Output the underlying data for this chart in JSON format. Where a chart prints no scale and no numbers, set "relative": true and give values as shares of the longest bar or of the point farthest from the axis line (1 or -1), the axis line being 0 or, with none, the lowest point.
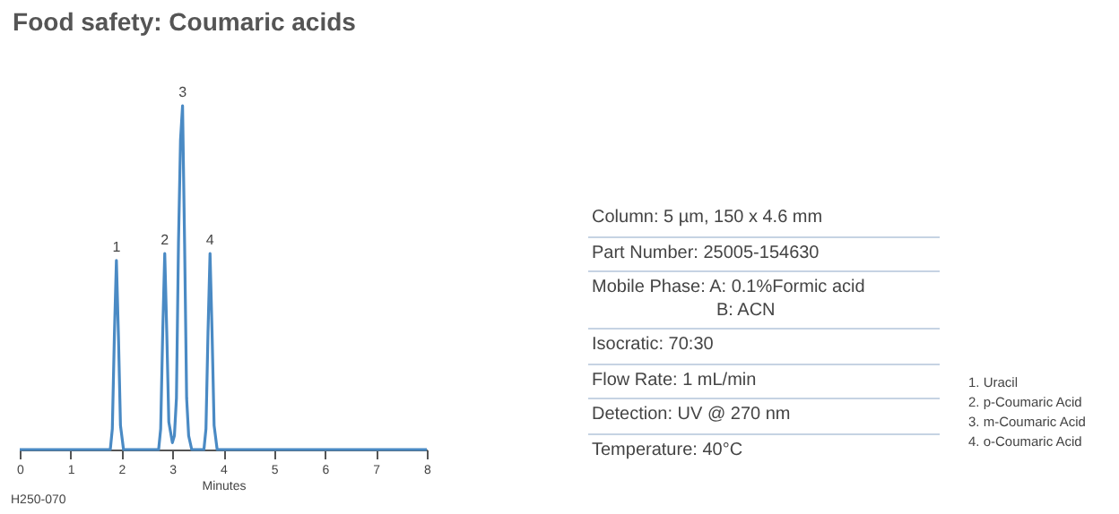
{
  "chart_data": {
    "type": "line",
    "title": "Food safety: Coumaric acids",
    "xlabel": "Minutes",
    "relative": true,
    "x": [
      0,
      1.78,
      1.82,
      1.86,
      1.9,
      1.94,
      1.98,
      2.04,
      2.73,
      2.77,
      2.81,
      2.85,
      2.89,
      2.93,
      3.0,
      3.04,
      3.08,
      3.12,
      3.16,
      3.2,
      3.24,
      3.28,
      3.32,
      3.38,
      3.62,
      3.66,
      3.7,
      3.74,
      3.78,
      3.82,
      3.88,
      8
    ],
    "series": [
      {
        "color": "#4a8ac4",
        "values": [
          0,
          0,
          0.06,
          0.33,
          0.55,
          0.33,
          0.07,
          0,
          0,
          0.06,
          0.34,
          0.57,
          0.34,
          0.08,
          0.02,
          0.04,
          0.15,
          0.6,
          0.9,
          1,
          0.6,
          0.15,
          0.04,
          0,
          0,
          0.06,
          0.34,
          0.57,
          0.34,
          0.07,
          0,
          0
        ]
      }
    ],
    "xlim": [
      0,
      8
    ],
    "xticks": [
      0,
      1,
      2,
      3,
      4,
      5,
      6,
      7,
      8
    ],
    "grid": false,
    "marker": "none",
    "line_style": "solid",
    "annotations": [
      {
        "text": "1",
        "x": 1.9,
        "y": 0.55
      },
      {
        "text": "2",
        "x": 2.85,
        "y": 0.57
      },
      {
        "text": "3",
        "x": 3.2,
        "y": 1
      },
      {
        "text": "4",
        "x": 3.74,
        "y": 0.57
      },
      "Column: 5 µm, 150 x 4.6 mm",
      "Part Number: 25005-154630",
      "Mobile Phase: A: 0.1%Formic acid\nB: ACN",
      "Isocratic: 70:30",
      "Flow Rate: 1 mL/min",
      "Detection: UV @ 270 nm",
      "Temperature: 40°C",
      "1. Uracil",
      "2. p-Coumaric Acid",
      "3. m-Coumaric Acid",
      "4. o-Coumaric Acid",
      "H250-070"
    ]
  }
}
